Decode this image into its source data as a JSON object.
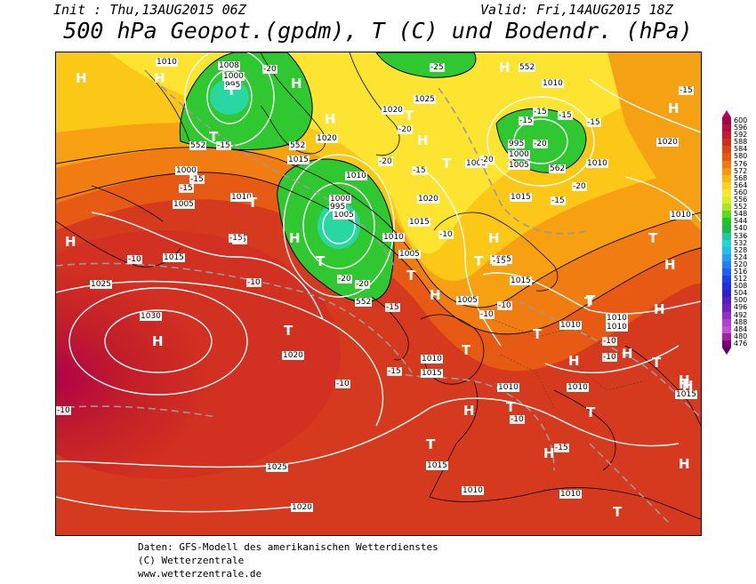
{
  "header": {
    "init": "Init : Thu,13AUG2015 06Z",
    "valid": "Valid: Fri,14AUG2015 18Z",
    "title": "500 hPa Geopot.(gpdm), T (C) und Bodendr. (hPa)"
  },
  "legend": {
    "values": [
      "600",
      "596",
      "592",
      "588",
      "584",
      "580",
      "576",
      "572",
      "568",
      "564",
      "560",
      "556",
      "552",
      "548",
      "544",
      "540",
      "536",
      "532",
      "528",
      "524",
      "520",
      "516",
      "512",
      "508",
      "504",
      "500",
      "496",
      "492",
      "488",
      "484",
      "480",
      "476"
    ],
    "colors": [
      "#a8004a",
      "#b80f3d",
      "#c41e2a",
      "#d02d20",
      "#dc4418",
      "#e65a10",
      "#ee7a10",
      "#f49a10",
      "#f8b810",
      "#fcd420",
      "#fce830",
      "#d8f020",
      "#a8e820",
      "#60d820",
      "#20c820",
      "#20b848",
      "#20c8a0",
      "#20d8d0",
      "#20c0e8",
      "#20a0f0",
      "#2080f0",
      "#2060f0",
      "#2040e8",
      "#2030d8",
      "#3020c8",
      "#5020c0",
      "#7020c0",
      "#9030c8",
      "#b040d0",
      "#c050d8",
      "#a020a0",
      "#780078"
    ],
    "top_arrow_color": "#c00060",
    "bottom_arrow_color": "#600060"
  },
  "pressure_labels": [
    "1010",
    "1008",
    "1000",
    "995",
    "1025",
    "1020",
    "1015",
    "1010",
    "1000",
    "1005",
    "1010",
    "1005",
    "1000",
    "995",
    "1005",
    "1010",
    "1015",
    "1020",
    "1015",
    "1005",
    "1010",
    "1015",
    "1025",
    "1030",
    "1020",
    "1015",
    "1010",
    "1005",
    "1010",
    "1010",
    "1010",
    "1010",
    "1015",
    "1010",
    "1010",
    "1025",
    "1020",
    "1020",
    "1010",
    "1005",
    "1000",
    "995",
    "1005",
    "1010",
    "1015",
    "1010",
    "1015",
    "1020",
    "552",
    "552",
    "562",
    "552",
    "552"
  ],
  "temp_labels": [
    "-20",
    "-15",
    "-15",
    "-15",
    "-20",
    "-25",
    "-20",
    "-15",
    "-20",
    "-15",
    "-20",
    "-15",
    "-15",
    "-15",
    "-15",
    "-10",
    "-10",
    "-20",
    "-20",
    "-10",
    "-15",
    "-15",
    "-10",
    "-10",
    "-10",
    "-15",
    "-10",
    "-10",
    "-10",
    "-15",
    "-20",
    "-15",
    "-15",
    "-15",
    "-10"
  ],
  "centers": [
    "H",
    "H",
    "T",
    "H",
    "H",
    "T",
    "H",
    "H",
    "T",
    "H",
    "T",
    "H",
    "H",
    "H",
    "H",
    "H",
    "T",
    "T",
    "T",
    "T",
    "T",
    "H",
    "T",
    "T",
    "T",
    "T",
    "H",
    "H",
    "T",
    "H",
    "H",
    "H",
    "T",
    "T",
    "H",
    "T",
    "H",
    "T",
    "H",
    "H",
    "T"
  ],
  "footer": {
    "line1": "Daten: GFS-Modell des amerikanischen Wetterdienstes",
    "line2": "(C) Wetterzentrale",
    "line3": "www.wetterzentrale.de"
  }
}
